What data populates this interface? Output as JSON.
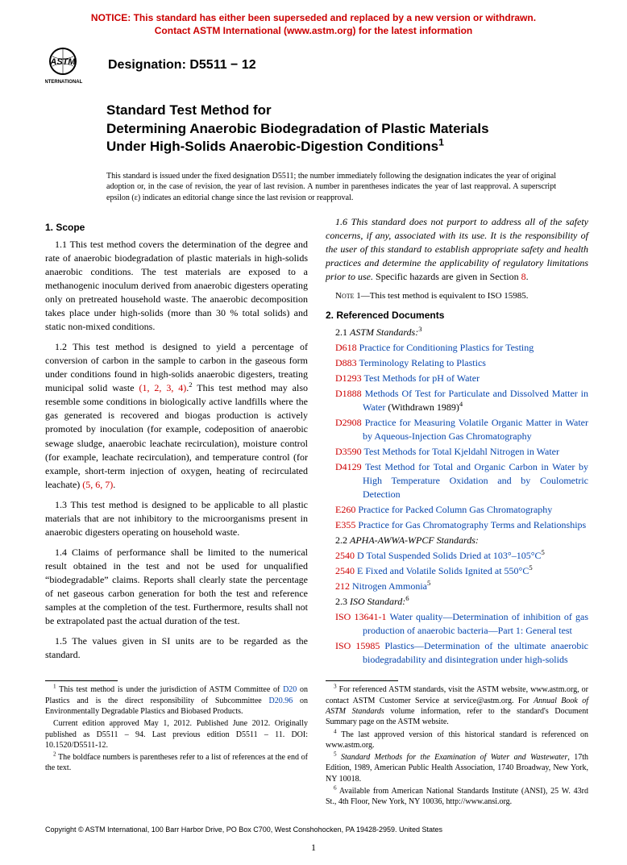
{
  "notice": {
    "line1": "NOTICE: This standard has either been superseded and replaced by a new version or withdrawn.",
    "line2": "Contact ASTM International (www.astm.org) for the latest information"
  },
  "logo": {
    "name": "astm-logo",
    "text_top": "ASTM",
    "text_bottom": "INTERNATIONAL"
  },
  "designation": "Designation: D5511 − 12",
  "title": {
    "l1": "Standard Test Method for",
    "l2": "Determining Anaerobic Biodegradation of Plastic Materials",
    "l3": "Under High-Solids Anaerobic-Digestion Conditions",
    "sup": "1"
  },
  "issuance": "This standard is issued under the fixed designation D5511; the number immediately following the designation indicates the year of original adoption or, in the case of revision, the year of last revision. A number in parentheses indicates the year of last reapproval. A superscript epsilon (ε) indicates an editorial change since the last revision or reapproval.",
  "scope_head": "1. Scope",
  "p11": "1.1 This test method covers the determination of the degree and rate of anaerobic biodegradation of plastic materials in high-solids anaerobic conditions. The test materials are exposed to a methanogenic inoculum derived from anaerobic digesters operating only on pretreated household waste. The anaerobic decomposition takes place under high-solids (more than 30 % total solids) and static non-mixed conditions.",
  "p12a": "1.2 This test method is designed to yield a percentage of conversion of carbon in the sample to carbon in the gaseous form under conditions found in high-solids anaerobic digesters, treating municipal solid waste ",
  "p12_refs": "(1, 2, 3, 4)",
  "p12_sup": "2",
  "p12b": " This test method may also resemble some conditions in biologically active landfills where the gas generated is recovered and biogas production is actively promoted by inoculation (for example, codeposition of anaerobic sewage sludge, anaerobic leachate recirculation), moisture control (for example, leachate recirculation), and temperature control (for example, short-term injection of oxygen, heating of recirculated leachate) ",
  "p12_refs2": "(5, 6, 7)",
  "p12_end": ".",
  "p13": "1.3 This test method is designed to be applicable to all plastic materials that are not inhibitory to the microorganisms present in anaerobic digesters operating on household waste.",
  "p14": "1.4 Claims of performance shall be limited to the numerical result obtained in the test and not be used for unqualified “biodegradable” claims. Reports shall clearly state the percentage of net gaseous carbon generation for both the test and reference samples at the completion of the test. Furthermore, results shall not be extrapolated past the actual duration of the test.",
  "p15": "1.5 The values given in SI units are to be regarded as the standard.",
  "p16_ital": "1.6 This standard does not purport to address all of the safety concerns, if any, associated with its use. It is the responsibility of the user of this standard to establish appropriate safety and health practices and determine the applicability of regulatory limitations prior to use.",
  "p16_plain": " Specific hazards are given in Section ",
  "p16_sec": "8",
  "note1_lead": "Note",
  "note1": " 1—This test method is equivalent to ISO 15985.",
  "refdoc_head": "2. Referenced Documents",
  "r21_lead": "2.1 ",
  "r21_ital": "ASTM Standards:",
  "r21_sup": "3",
  "astm_refs": [
    {
      "code": "D618",
      "txt": "Practice for Conditioning Plastics for Testing"
    },
    {
      "code": "D883",
      "txt": "Terminology Relating to Plastics"
    },
    {
      "code": "D1293",
      "txt": "Test Methods for pH of Water"
    },
    {
      "code": "D1888",
      "txt": "Methods Of Test for Particulate and Dissolved Matter in Water",
      "suffix": " (Withdrawn 1989)",
      "sup": "4"
    },
    {
      "code": "D2908",
      "txt": "Practice for Measuring Volatile Organic Matter in Water by Aqueous-Injection Gas Chromatography"
    },
    {
      "code": "D3590",
      "txt": "Test Methods for Total Kjeldahl Nitrogen in Water"
    },
    {
      "code": "D4129",
      "txt": "Test Method for Total and Organic Carbon in Water by High Temperature Oxidation and by Coulometric Detection"
    },
    {
      "code": "E260",
      "txt": "Practice for Packed Column Gas Chromatography"
    },
    {
      "code": "E355",
      "txt": "Practice for Gas Chromatography Terms and Relationships"
    }
  ],
  "r22_lead": "2.2 ",
  "r22_ital": "APHA-AWWA-WPCF Standards:",
  "apha_refs": [
    {
      "code": "2540",
      "txt": "D Total Suspended Solids Dried at 103°–105°C",
      "sup": "5"
    },
    {
      "code": "2540",
      "txt": "E Fixed and Volatile Solids Ignited at 550°C",
      "sup": "5"
    },
    {
      "code": "212",
      "txt": "Nitrogen Ammonia",
      "sup": "5"
    }
  ],
  "r23_lead": "2.3 ",
  "r23_ital": "ISO Standard:",
  "r23_sup": "6",
  "iso_refs": [
    {
      "code": "ISO 13641-1",
      "txt": "Water quality—Determination of inhibition of gas production of anaerobic bacteria—Part 1: General test"
    },
    {
      "code": "ISO 15985",
      "txt": "Plastics—Determination of the ultimate anaerobic biodegradability and disintegration under high-solids"
    }
  ],
  "fn_left": [
    {
      "sup": "1",
      "txt_a": " This test method is under the jurisdiction of ASTM Committee of ",
      "link1": "D20",
      "txt_b": " on Plastics and is the direct responsibility of Subcommittee ",
      "link2": "D20.96",
      "txt_c": " on Environmentally Degradable Plastics and Biobased Products."
    },
    {
      "sup": "",
      "txt_a": "Current edition approved May 1, 2012. Published June 2012. Originally published as D5511 – 94. Last previous edition D5511 – 11. DOI: 10.1520/D5511-12."
    },
    {
      "sup": "2",
      "txt_a": " The boldface numbers is parentheses refer to a list of references at the end of the text."
    }
  ],
  "fn_right": [
    {
      "sup": "3",
      "txt_a": " For referenced ASTM standards, visit the ASTM website, www.astm.org, or contact ASTM Customer Service at service@astm.org. For ",
      "ital": "Annual Book of ASTM Standards",
      "txt_b": " volume information, refer to the standard's Document Summary page on the ASTM website."
    },
    {
      "sup": "4",
      "txt_a": " The last approved version of this historical standard is referenced on www.astm.org."
    },
    {
      "sup": "5",
      "txt_a": " ",
      "ital": "Standard Methods for the Examination of Water and Wastewater",
      "txt_b": ", 17th Edition, 1989, American Public Health Association, 1740 Broadway, New York, NY 10018."
    },
    {
      "sup": "6",
      "txt_a": " Available from American National Standards Institute (ANSI), 25 W. 43rd St., 4th Floor, New York, NY 10036, http://www.ansi.org."
    }
  ],
  "copyright": "Copyright © ASTM International, 100 Barr Harbor Drive, PO Box C700, West Conshohocken, PA 19428-2959. United States",
  "pagenum": "1"
}
